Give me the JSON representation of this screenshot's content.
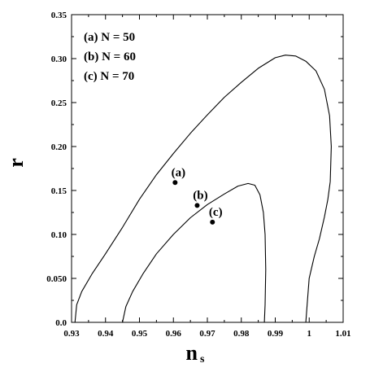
{
  "chart_data": {
    "type": "line",
    "title": "",
    "xlabel": "n",
    "xlabel_sub": "s",
    "ylabel": "r",
    "xlim": [
      0.93,
      1.01
    ],
    "ylim": [
      0.0,
      0.35
    ],
    "x_ticks": [
      "0.93",
      "0.94",
      "0.95",
      "0.96",
      "0.97",
      "0.98",
      "0.99",
      "1",
      "1.01"
    ],
    "y_ticks": [
      "0.0",
      "0.050",
      "0.10",
      "0.15",
      "0.20",
      "0.25",
      "0.30",
      "0.35"
    ],
    "grid": false,
    "legend_position": "top-left",
    "legend": [
      "(a) N = 50",
      "(b) N = 60",
      "(c) N = 70"
    ],
    "series": [
      {
        "points": [
          [
            0.931,
            0.0
          ],
          [
            0.9315,
            0.02
          ],
          [
            0.933,
            0.035
          ],
          [
            0.936,
            0.055
          ],
          [
            0.94,
            0.078
          ],
          [
            0.945,
            0.108
          ],
          [
            0.95,
            0.14
          ],
          [
            0.955,
            0.168
          ],
          [
            0.96,
            0.192
          ],
          [
            0.965,
            0.215
          ],
          [
            0.97,
            0.236
          ],
          [
            0.975,
            0.256
          ],
          [
            0.98,
            0.273
          ],
          [
            0.985,
            0.289
          ],
          [
            0.99,
            0.301
          ],
          [
            0.993,
            0.304
          ],
          [
            0.996,
            0.303
          ],
          [
            0.999,
            0.297
          ],
          [
            1.002,
            0.286
          ],
          [
            1.0045,
            0.265
          ],
          [
            1.006,
            0.235
          ],
          [
            1.0065,
            0.2
          ],
          [
            1.0062,
            0.16
          ],
          [
            1.0055,
            0.14
          ],
          [
            1.0045,
            0.12
          ],
          [
            1.003,
            0.095
          ],
          [
            1.0015,
            0.075
          ],
          [
            1.0,
            0.05
          ],
          [
            0.9994,
            0.02
          ],
          [
            0.999,
            0.0
          ]
        ]
      },
      {
        "points": [
          [
            0.945,
            0.0
          ],
          [
            0.946,
            0.018
          ],
          [
            0.948,
            0.035
          ],
          [
            0.951,
            0.055
          ],
          [
            0.955,
            0.078
          ],
          [
            0.96,
            0.1
          ],
          [
            0.965,
            0.119
          ],
          [
            0.97,
            0.134
          ],
          [
            0.975,
            0.146
          ],
          [
            0.979,
            0.155
          ],
          [
            0.982,
            0.158
          ],
          [
            0.984,
            0.156
          ],
          [
            0.9855,
            0.145
          ],
          [
            0.9865,
            0.125
          ],
          [
            0.987,
            0.1
          ],
          [
            0.9872,
            0.06
          ],
          [
            0.987,
            0.02
          ],
          [
            0.9868,
            0.0
          ]
        ]
      }
    ],
    "points": [
      {
        "label": "(a)",
        "x": 0.9605,
        "y": 0.159
      },
      {
        "label": "(b)",
        "x": 0.967,
        "y": 0.133
      },
      {
        "label": "(c)",
        "x": 0.9715,
        "y": 0.114
      }
    ]
  }
}
